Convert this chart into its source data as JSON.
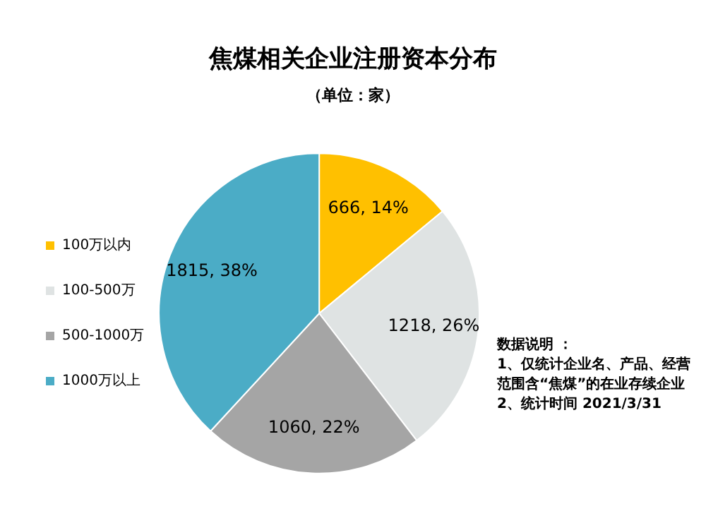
{
  "chart_data": {
    "type": "pie",
    "title": "焦煤相关企业注册资本分布",
    "subtitle": "（单位：家）",
    "categories": [
      "100万以内",
      "100-500万",
      "500-1000万",
      "1000万以上"
    ],
    "values": [
      666,
      1218,
      1060,
      1815
    ],
    "value_labels": [
      "666, 14%",
      "1218, 26%",
      "1060, 22%",
      "1815, 38%"
    ],
    "colors": [
      "#ffc000",
      "#dfe3e3",
      "#a5a5a5",
      "#4bacc6"
    ],
    "legend": "left",
    "annotations": [
      "数据说明 ：",
      "1、仅统计企业名、产品、经营范围含“焦煤”的在业存续企业",
      "2、统计时间 2021/3/31"
    ]
  }
}
